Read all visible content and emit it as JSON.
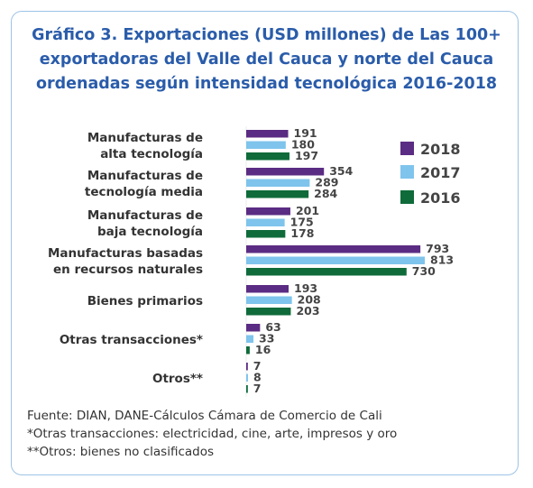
{
  "title_lines": [
    "Gráfico 3. Exportaciones (USD millones) de Las 100+",
    "exportadoras del Valle del Cauca y norte del Cauca",
    "ordenadas según intensidad tecnológica 2016-2018"
  ],
  "chart_data": {
    "type": "bar",
    "orientation": "horizontal",
    "categories": [
      [
        "Manufacturas de",
        "alta tecnología"
      ],
      [
        "Manufacturas de",
        "tecnología media"
      ],
      [
        "Manufacturas de",
        "baja tecnología"
      ],
      [
        "Manufacturas basadas",
        "en recursos naturales"
      ],
      [
        "Bienes primarios"
      ],
      [
        "Otras transacciones*"
      ],
      [
        "Otros**"
      ]
    ],
    "series": [
      {
        "name": "2018",
        "color": "#5b2c83",
        "values": [
          191,
          354,
          201,
          793,
          193,
          63,
          7
        ]
      },
      {
        "name": "2017",
        "color": "#7fc4ec",
        "values": [
          180,
          289,
          175,
          813,
          208,
          33,
          8
        ]
      },
      {
        "name": "2016",
        "color": "#0f6b3a",
        "values": [
          197,
          284,
          178,
          730,
          203,
          16,
          7
        ]
      }
    ],
    "legend_position": "right",
    "axes_visible": false,
    "grid": false
  },
  "notes": [
    "Fuente: DIAN, DANE-Cálculos Cámara de Comercio de Cali",
    "*Otras transacciones: electricidad, cine, arte, impresos y oro",
    "**Otros: bienes no clasificados"
  ]
}
